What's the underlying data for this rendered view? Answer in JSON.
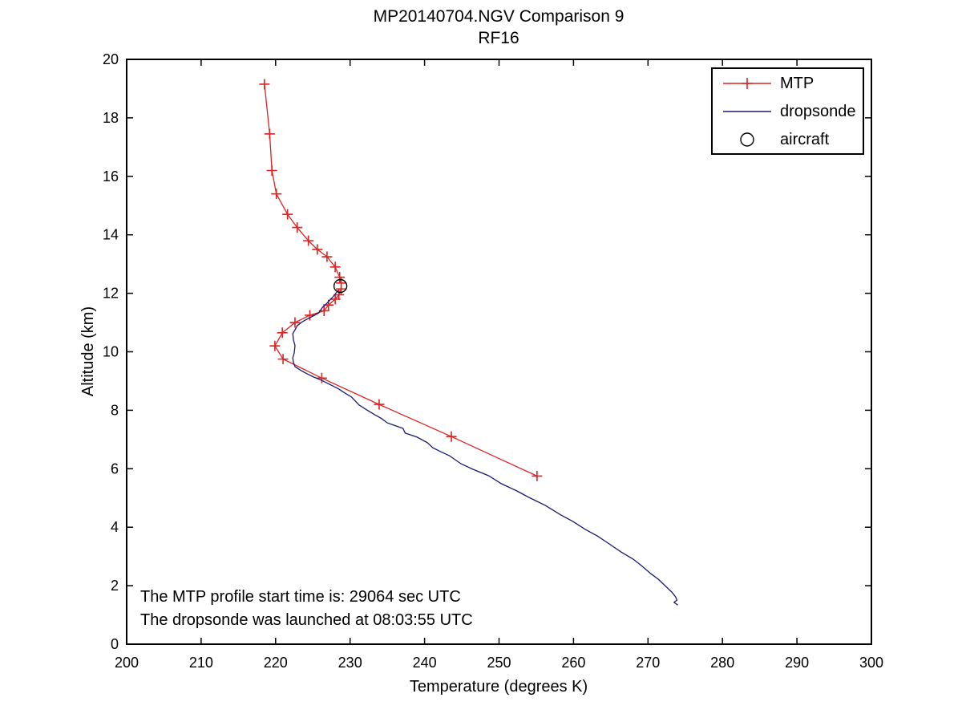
{
  "figure": {
    "title_line1": "MP20140704.NGV Comparison 9",
    "title_line2": "RF16"
  },
  "axes": {
    "xlabel": "Temperature (degrees K)",
    "ylabel": "Altitude (km)"
  },
  "annotation": {
    "line1": "The MTP profile start time is: 29064 sec UTC",
    "line2": "The dropsonde was launched at 08:03:55 UTC"
  },
  "legend": {
    "position": "upper-right",
    "items": [
      {
        "label": "MTP",
        "type": "line-plus",
        "color": "#dd2222"
      },
      {
        "label": "dropsonde",
        "type": "line",
        "color": "#191970"
      },
      {
        "label": "aircraft",
        "type": "circle",
        "color": "#000000"
      }
    ]
  },
  "colors": {
    "mtp": "#dd2222",
    "dropsonde": "#191970",
    "aircraft": "#000000",
    "axis": "#000000",
    "background": "#ffffff"
  },
  "chart_data": {
    "type": "line",
    "title": "MP20140704.NGV Comparison 9",
    "subtitle": "RF16",
    "xlabel": "Temperature (degrees K)",
    "ylabel": "Altitude (km)",
    "xlim": [
      200,
      300
    ],
    "ylim": [
      0,
      20
    ],
    "xticks": [
      200,
      210,
      220,
      230,
      240,
      250,
      260,
      270,
      280,
      290,
      300
    ],
    "yticks": [
      0,
      2,
      4,
      6,
      8,
      10,
      12,
      14,
      16,
      18,
      20
    ],
    "grid": false,
    "legend_position": "upper right",
    "series": [
      {
        "name": "MTP",
        "color": "#dd2222",
        "marker": "plus",
        "points": [
          [
            218.5,
            19.15
          ],
          [
            219.2,
            17.45
          ],
          [
            219.5,
            16.2
          ],
          [
            220.1,
            15.4
          ],
          [
            221.6,
            14.7
          ],
          [
            222.9,
            14.25
          ],
          [
            224.4,
            13.8
          ],
          [
            225.6,
            13.5
          ],
          [
            226.9,
            13.25
          ],
          [
            228.0,
            12.9
          ],
          [
            228.6,
            12.55
          ],
          [
            228.8,
            12.35
          ],
          [
            228.8,
            12.15
          ],
          [
            228.5,
            11.95
          ],
          [
            228.0,
            11.8
          ],
          [
            227.1,
            11.6
          ],
          [
            226.5,
            11.4
          ],
          [
            224.6,
            11.25
          ],
          [
            222.6,
            11.0
          ],
          [
            220.9,
            10.65
          ],
          [
            219.9,
            10.2
          ],
          [
            221.0,
            9.75
          ],
          [
            226.2,
            9.1
          ],
          [
            233.9,
            8.2
          ],
          [
            243.6,
            7.1
          ],
          [
            255.1,
            5.75
          ]
        ]
      },
      {
        "name": "dropsonde",
        "color": "#191970",
        "marker": "none",
        "points": [
          [
            228.4,
            12.1
          ],
          [
            227.7,
            11.88
          ],
          [
            226.9,
            11.66
          ],
          [
            226.3,
            11.52
          ],
          [
            225.8,
            11.33
          ],
          [
            225.0,
            11.22
          ],
          [
            224.4,
            11.14
          ],
          [
            223.6,
            11.03
          ],
          [
            222.9,
            10.89
          ],
          [
            222.6,
            10.75
          ],
          [
            222.3,
            10.62
          ],
          [
            222.4,
            10.4
          ],
          [
            222.6,
            10.21
          ],
          [
            222.5,
            9.96
          ],
          [
            222.3,
            9.79
          ],
          [
            222.4,
            9.63
          ],
          [
            222.6,
            9.49
          ],
          [
            223.4,
            9.36
          ],
          [
            224.2,
            9.25
          ],
          [
            225.0,
            9.15
          ],
          [
            226.2,
            9.02
          ],
          [
            227.3,
            8.88
          ],
          [
            228.4,
            8.74
          ],
          [
            229.3,
            8.59
          ],
          [
            230.2,
            8.45
          ],
          [
            231.2,
            8.18
          ],
          [
            232.2,
            8.02
          ],
          [
            233.3,
            7.85
          ],
          [
            234.2,
            7.72
          ],
          [
            235.0,
            7.57
          ],
          [
            236.0,
            7.48
          ],
          [
            237.1,
            7.38
          ],
          [
            237.4,
            7.22
          ],
          [
            238.2,
            7.15
          ],
          [
            239.0,
            7.08
          ],
          [
            240.4,
            6.89
          ],
          [
            241.1,
            6.72
          ],
          [
            242.2,
            6.58
          ],
          [
            243.3,
            6.45
          ],
          [
            244.9,
            6.17
          ],
          [
            246.5,
            5.98
          ],
          [
            248.6,
            5.76
          ],
          [
            250.3,
            5.49
          ],
          [
            252.4,
            5.24
          ],
          [
            254.0,
            5.02
          ],
          [
            256.2,
            4.75
          ],
          [
            258.3,
            4.42
          ],
          [
            259.9,
            4.2
          ],
          [
            261.6,
            3.92
          ],
          [
            263.2,
            3.7
          ],
          [
            264.8,
            3.43
          ],
          [
            266.4,
            3.15
          ],
          [
            268.0,
            2.91
          ],
          [
            269.1,
            2.69
          ],
          [
            270.4,
            2.41
          ],
          [
            271.4,
            2.22
          ],
          [
            272.3,
            2.0
          ],
          [
            273.2,
            1.78
          ],
          [
            273.7,
            1.62
          ],
          [
            273.9,
            1.51
          ],
          [
            273.5,
            1.43
          ],
          [
            274.0,
            1.34
          ]
        ]
      },
      {
        "name": "aircraft",
        "color": "#000000",
        "marker": "circle",
        "points": [
          [
            228.7,
            12.25
          ]
        ]
      }
    ]
  }
}
